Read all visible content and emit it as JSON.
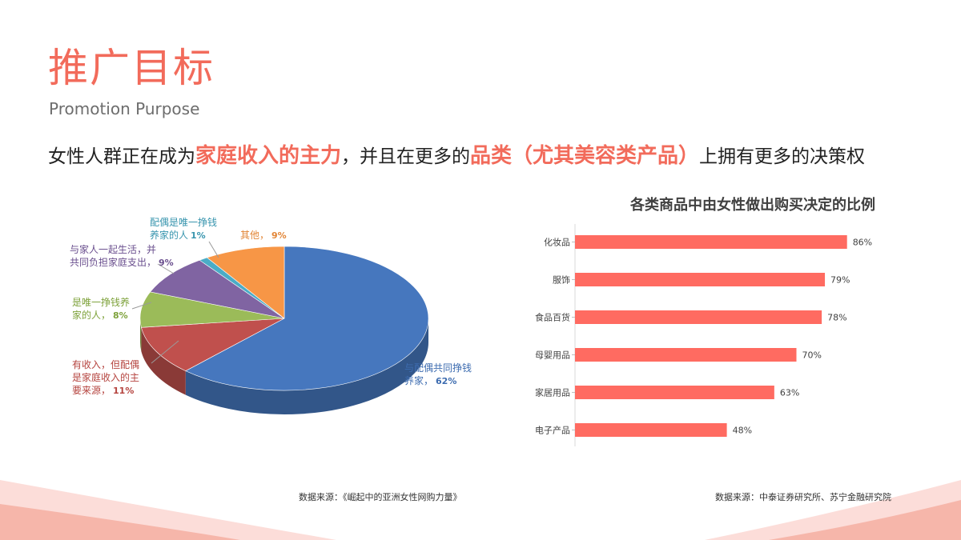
{
  "page": {
    "title": "推广目标",
    "subtitle": "Promotion Purpose",
    "headline": {
      "part1": "女性人群正在成为",
      "highlight1": "家庭收入的主力",
      "part2": "，并且在更多的",
      "highlight2": "品类（尤其美容类产品）",
      "part3": "上拥有更多的决策权"
    },
    "source_left": "数据来源：《崛起中的亚洲女性网购力量》",
    "source_right": "数据来源：中泰证券研究所、苏宁金融研究院"
  },
  "colors": {
    "accent": "#f26b5b",
    "bar": "#ff6b61"
  },
  "chart_data": [
    {
      "type": "pie",
      "title": "",
      "slices": [
        {
          "label_lines": [
            "与配偶共同挣钱",
            "养家，"
          ],
          "value_text": "62%",
          "value": 62,
          "color": "#4677be",
          "label_color": "#3d6cb0"
        },
        {
          "label_lines": [
            "有收入，但配偶",
            "是家庭收入的主",
            "要来源，"
          ],
          "value_text": "11%",
          "value": 11,
          "color": "#c0504d",
          "label_color": "#b5443f"
        },
        {
          "label_lines": [
            "是唯一挣钱养",
            "家的人，"
          ],
          "value_text": "8%",
          "value": 8,
          "color": "#9bbb59",
          "label_color": "#7ea23b"
        },
        {
          "label_lines": [
            "与家人一起生活，并",
            "共同负担家庭支出，"
          ],
          "value_text": "9%",
          "value": 9,
          "color": "#8064a2",
          "label_color": "#6a4f8e"
        },
        {
          "label_lines": [
            "配偶是唯一挣钱",
            "养家的人"
          ],
          "value_text": "1%",
          "value": 1,
          "color": "#4bacc6",
          "label_color": "#3895ae"
        },
        {
          "label_lines": [
            "其他，"
          ],
          "value_text": "9%",
          "value": 9,
          "color": "#f79646",
          "label_color": "#e28536"
        }
      ]
    },
    {
      "type": "bar",
      "orientation": "horizontal",
      "title": "各类商品中由女性做出购买决定的比例",
      "categories": [
        "化妆品",
        "服饰",
        "食品百货",
        "母婴用品",
        "家居用品",
        "电子产品"
      ],
      "values": [
        86,
        79,
        78,
        70,
        63,
        48
      ],
      "value_labels": [
        "86%",
        "79%",
        "78%",
        "70%",
        "63%",
        "48%"
      ],
      "xlim": [
        0,
        100
      ]
    }
  ]
}
